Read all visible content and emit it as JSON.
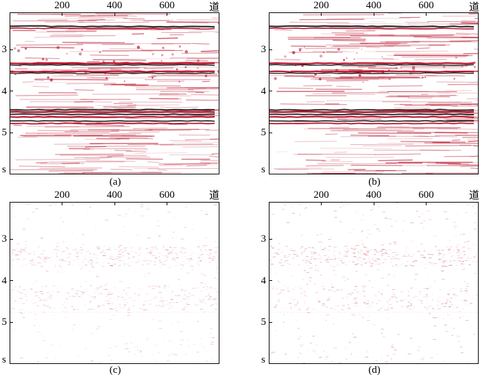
{
  "figure": {
    "x_unit": "道",
    "y_unit": "s",
    "x_ticks": [
      "200",
      "400",
      "600"
    ],
    "y_ticks": [
      "3",
      "4",
      "5"
    ],
    "x_tick_values": [
      200,
      400,
      600
    ],
    "y_tick_values": [
      3,
      4,
      5
    ],
    "x_range": [
      0,
      800
    ],
    "y_range": [
      2.1,
      6.0
    ],
    "colormap": {
      "positive": "#b3001b",
      "negative": "#1a1a1a",
      "zero": "#ffffff"
    },
    "panels": [
      {
        "id": "a",
        "caption": "(a)",
        "content": "seismic-section"
      },
      {
        "id": "b",
        "caption": "(b)",
        "content": "seismic-section"
      },
      {
        "id": "c",
        "caption": "(c)",
        "content": "residual"
      },
      {
        "id": "d",
        "caption": "(d)",
        "content": "residual"
      }
    ]
  }
}
